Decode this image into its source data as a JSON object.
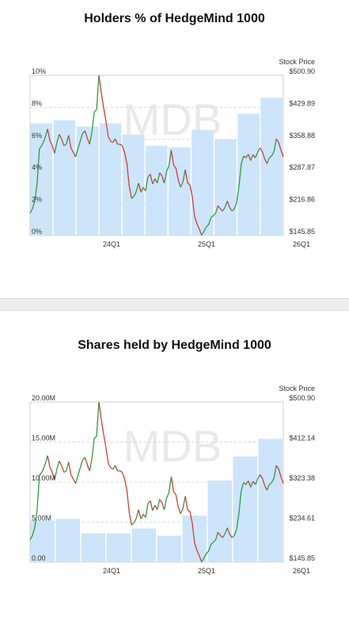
{
  "charts": [
    {
      "title": "Holders % of HedgeMind 1000"
    },
    {
      "title": "Shares held by HedgeMind 1000"
    }
  ],
  "chart_data": [
    {
      "type": "bar",
      "title": "Holders % of HedgeMind 1000",
      "watermark": "MDB",
      "right_axis_title": "Stock Price",
      "x_ticks": [
        "24Q1",
        "25Q1",
        "26Q1"
      ],
      "left_axis": {
        "ticks": [
          "0%",
          "2%",
          "4%",
          "6%",
          "8%",
          "10%"
        ],
        "ylim": [
          0,
          10
        ]
      },
      "right_axis": {
        "ticks": [
          "$145.85",
          "$216.86",
          "$287.87",
          "$358.88",
          "$429.89",
          "$500.90"
        ],
        "ylim": [
          145.85,
          500.9
        ]
      },
      "bars": [
        7.0,
        7.2,
        6.8,
        7.0,
        6.3,
        5.6,
        5.5,
        6.6,
        6.0,
        7.6,
        8.6
      ],
      "grid": true,
      "bar_color": "#cce5fb",
      "up_color": "#2e9b3e",
      "down_color": "#d63a3a"
    },
    {
      "type": "bar",
      "title": "Shares held by HedgeMind 1000",
      "watermark": "MDB",
      "right_axis_title": "Stock Price",
      "x_ticks": [
        "24Q1",
        "25Q1",
        "26Q1"
      ],
      "left_axis": {
        "ticks": [
          "0.00",
          "5.00M",
          "10.00M",
          "15.00M",
          "20.00M"
        ],
        "ylim": [
          0,
          20
        ]
      },
      "right_axis": {
        "ticks": [
          "$145.85",
          "$234.61",
          "$323.38",
          "$412.14",
          "$500.90"
        ],
        "ylim": [
          145.85,
          500.9
        ]
      },
      "bars": [
        5.2,
        5.4,
        3.6,
        3.6,
        4.2,
        3.3,
        5.8,
        10.2,
        13.2,
        15.4
      ],
      "grid": true,
      "bar_color": "#cce5fb",
      "up_color": "#2e9b3e",
      "down_color": "#d63a3a"
    }
  ],
  "stock_price": [
    [
      0,
      195
    ],
    [
      2,
      205
    ],
    [
      4,
      222
    ],
    [
      6,
      260
    ],
    [
      8,
      338
    ],
    [
      10,
      345
    ],
    [
      12,
      356
    ],
    [
      14,
      372
    ],
    [
      15,
      382
    ],
    [
      17,
      356
    ],
    [
      19,
      345
    ],
    [
      21,
      328
    ],
    [
      23,
      352
    ],
    [
      25,
      370
    ],
    [
      27,
      360
    ],
    [
      29,
      345
    ],
    [
      31,
      348
    ],
    [
      33,
      368
    ],
    [
      35,
      340
    ],
    [
      37,
      330
    ],
    [
      39,
      320
    ],
    [
      41,
      338
    ],
    [
      43,
      355
    ],
    [
      45,
      372
    ],
    [
      47,
      378
    ],
    [
      49,
      362
    ],
    [
      51,
      348
    ],
    [
      53,
      375
    ],
    [
      55,
      420
    ],
    [
      57,
      425
    ],
    [
      59,
      500.9
    ],
    [
      61,
      462
    ],
    [
      63,
      430
    ],
    [
      65,
      400
    ],
    [
      67,
      365
    ],
    [
      69,
      355
    ],
    [
      71,
      352
    ],
    [
      73,
      360
    ],
    [
      75,
      348
    ],
    [
      77,
      348
    ],
    [
      79,
      345
    ],
    [
      81,
      330
    ],
    [
      83,
      305
    ],
    [
      85,
      255
    ],
    [
      87,
      228
    ],
    [
      89,
      233
    ],
    [
      91,
      243
    ],
    [
      93,
      262
    ],
    [
      95,
      242
    ],
    [
      97,
      252
    ],
    [
      99,
      245
    ],
    [
      101,
      275
    ],
    [
      103,
      282
    ],
    [
      105,
      260
    ],
    [
      107,
      272
    ],
    [
      109,
      262
    ],
    [
      111,
      285
    ],
    [
      113,
      278
    ],
    [
      115,
      262
    ],
    [
      117,
      288
    ],
    [
      119,
      300
    ],
    [
      121,
      335
    ],
    [
      123,
      302
    ],
    [
      125,
      295
    ],
    [
      127,
      268
    ],
    [
      129,
      253
    ],
    [
      131,
      265
    ],
    [
      133,
      292
    ],
    [
      135,
      262
    ],
    [
      137,
      258
    ],
    [
      139,
      232
    ],
    [
      141,
      188
    ],
    [
      143,
      172
    ],
    [
      145,
      160
    ],
    [
      147,
      146
    ],
    [
      149,
      155
    ],
    [
      151,
      165
    ],
    [
      153,
      170
    ],
    [
      155,
      185
    ],
    [
      157,
      190
    ],
    [
      159,
      195
    ],
    [
      161,
      212
    ],
    [
      163,
      205
    ],
    [
      165,
      200
    ],
    [
      167,
      208
    ],
    [
      169,
      222
    ],
    [
      171,
      208
    ],
    [
      173,
      200
    ],
    [
      175,
      205
    ],
    [
      177,
      218
    ],
    [
      179,
      255
    ],
    [
      181,
      305
    ],
    [
      183,
      322
    ],
    [
      185,
      318
    ],
    [
      187,
      326
    ],
    [
      189,
      312
    ],
    [
      191,
      325
    ],
    [
      193,
      318
    ],
    [
      195,
      330
    ],
    [
      197,
      340
    ],
    [
      199,
      332
    ],
    [
      201,
      316
    ],
    [
      203,
      305
    ],
    [
      205,
      318
    ],
    [
      207,
      322
    ],
    [
      209,
      332
    ],
    [
      211,
      360
    ],
    [
      213,
      352
    ],
    [
      215,
      335
    ],
    [
      217,
      320
    ]
  ]
}
